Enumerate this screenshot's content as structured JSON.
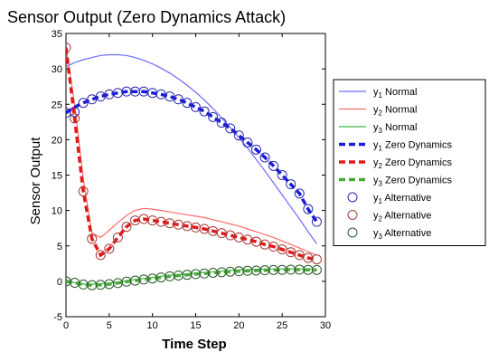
{
  "chart_data": {
    "type": "line",
    "title": "Sensor Output (Zero Dynamics Attack)",
    "xlabel": "Time Step",
    "ylabel": "Sensor Output",
    "xlim": [
      0,
      30
    ],
    "ylim": [
      -5,
      35
    ],
    "xticks": [
      "0",
      "5",
      "10",
      "15",
      "20",
      "25",
      "30"
    ],
    "yticks": [
      "-5",
      "0",
      "5",
      "10",
      "15",
      "20",
      "25",
      "30",
      "35"
    ],
    "grid": false,
    "legend_position": "right",
    "x": [
      0,
      1,
      2,
      3,
      4,
      5,
      6,
      7,
      8,
      9,
      10,
      11,
      12,
      13,
      14,
      15,
      16,
      17,
      18,
      19,
      20,
      21,
      22,
      23,
      24,
      25,
      26,
      27,
      28,
      29
    ],
    "series": [
      {
        "name": "Normal",
        "sub": "1",
        "style": "thin",
        "color": "#6b6bff",
        "values": [
          30.3,
          30.9,
          31.3,
          31.6,
          31.9,
          32.0,
          32.0,
          31.9,
          31.6,
          31.2,
          30.7,
          30.1,
          29.4,
          28.6,
          27.7,
          26.7,
          25.6,
          24.4,
          23.1,
          21.7,
          20.3,
          18.8,
          17.2,
          15.6,
          13.9,
          12.2,
          10.5,
          8.8,
          7.0,
          5.3
        ]
      },
      {
        "name": "Normal",
        "sub": "2",
        "style": "thin",
        "color": "#ff6b6b",
        "values": [
          33.0,
          25.0,
          14.5,
          6.8,
          6.2,
          7.2,
          8.3,
          9.3,
          10.0,
          10.3,
          10.2,
          10.0,
          9.8,
          9.6,
          9.4,
          9.2,
          9.0,
          8.7,
          8.4,
          8.1,
          7.8,
          7.4,
          7.0,
          6.6,
          6.2,
          5.7,
          5.2,
          4.7,
          4.2,
          3.7
        ]
      },
      {
        "name": "Normal",
        "sub": "3",
        "style": "thin",
        "color": "#3cb84a",
        "values": [
          0.0,
          -0.2,
          -0.4,
          -0.4,
          -0.35,
          -0.25,
          -0.1,
          0.1,
          0.25,
          0.4,
          0.55,
          0.7,
          0.85,
          0.95,
          1.05,
          1.15,
          1.25,
          1.35,
          1.45,
          1.55,
          1.6,
          1.65,
          1.7,
          1.72,
          1.74,
          1.75,
          1.75,
          1.74,
          1.72,
          1.7
        ]
      },
      {
        "name": "Zero Dynamics",
        "sub": "1",
        "style": "dashed",
        "color": "#1a1ae0",
        "values": [
          23.8,
          24.6,
          25.2,
          25.7,
          26.1,
          26.4,
          26.6,
          26.8,
          26.8,
          26.8,
          26.6,
          26.4,
          26.1,
          25.7,
          25.2,
          24.6,
          24.0,
          23.2,
          22.4,
          21.6,
          20.6,
          19.6,
          18.6,
          17.5,
          16.3,
          15.0,
          13.7,
          12.4,
          10.2,
          8.4
        ]
      },
      {
        "name": "Zero Dynamics",
        "sub": "2",
        "style": "dashed",
        "color": "#e01a1a",
        "values": [
          33.0,
          23.0,
          12.7,
          6.0,
          3.7,
          4.6,
          6.2,
          7.7,
          8.6,
          8.8,
          8.6,
          8.4,
          8.2,
          8.0,
          7.8,
          7.6,
          7.4,
          7.1,
          6.8,
          6.5,
          6.2,
          5.9,
          5.6,
          5.2,
          4.9,
          4.5,
          4.1,
          3.7,
          3.3,
          3.1
        ]
      },
      {
        "name": "Zero Dynamics",
        "sub": "3",
        "style": "dashed",
        "color": "#4aa83a",
        "values": [
          0.0,
          -0.2,
          -0.45,
          -0.55,
          -0.5,
          -0.4,
          -0.25,
          -0.05,
          0.1,
          0.25,
          0.4,
          0.55,
          0.7,
          0.82,
          0.92,
          1.02,
          1.1,
          1.2,
          1.28,
          1.36,
          1.42,
          1.48,
          1.52,
          1.56,
          1.6,
          1.62,
          1.64,
          1.64,
          1.62,
          1.6
        ]
      },
      {
        "name": "Alternative",
        "sub": "1",
        "style": "markers",
        "color": "#2a2ab0",
        "values": [
          23.8,
          23.9,
          25.2,
          25.7,
          26.1,
          26.4,
          26.6,
          26.8,
          26.8,
          26.8,
          26.6,
          26.4,
          26.1,
          25.7,
          25.2,
          24.6,
          24.0,
          23.2,
          22.4,
          21.6,
          20.6,
          19.6,
          18.6,
          17.5,
          16.3,
          15.0,
          13.7,
          12.4,
          10.2,
          8.4
        ]
      },
      {
        "name": "Alternative",
        "sub": "2",
        "style": "markers",
        "color": "#a83a3a",
        "values": [
          33.0,
          23.0,
          12.7,
          6.0,
          3.7,
          4.6,
          6.2,
          7.7,
          8.6,
          8.8,
          8.6,
          8.4,
          8.2,
          8.0,
          7.8,
          7.6,
          7.4,
          7.1,
          6.8,
          6.5,
          6.2,
          5.9,
          5.6,
          5.2,
          4.9,
          4.5,
          4.1,
          3.7,
          3.3,
          3.1
        ]
      },
      {
        "name": "Alternative",
        "sub": "3",
        "style": "markers",
        "color": "#2a5a2a",
        "values": [
          0.0,
          -0.2,
          -0.45,
          -0.55,
          -0.5,
          -0.4,
          -0.25,
          -0.05,
          0.1,
          0.25,
          0.4,
          0.55,
          0.7,
          0.82,
          0.92,
          1.02,
          1.1,
          1.2,
          1.28,
          1.36,
          1.42,
          1.48,
          1.52,
          1.56,
          1.6,
          1.62,
          1.64,
          1.64,
          1.62,
          1.6
        ]
      }
    ]
  }
}
